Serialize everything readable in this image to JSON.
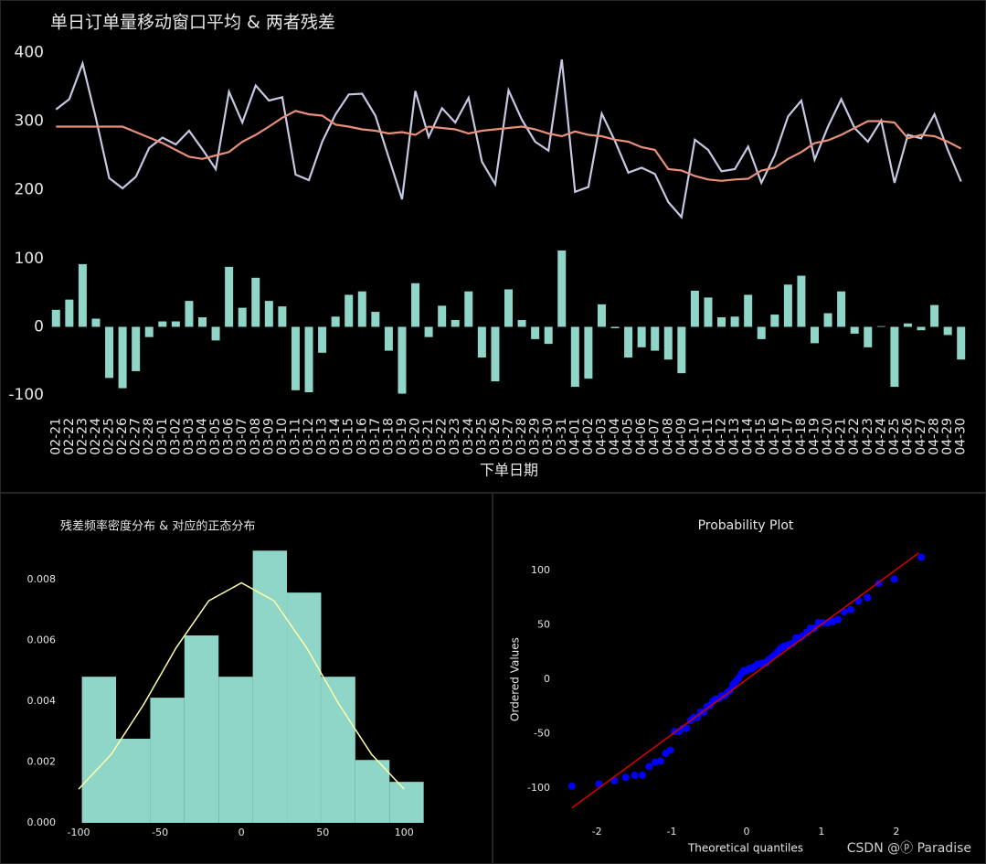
{
  "chart_data": [
    {
      "type": "line",
      "title": "单日订单量移动窗口平均 & 两者残差",
      "series": [
        {
          "color": "#c5c8e0",
          "values": [
            317,
            332,
            384,
            304,
            217,
            202,
            219,
            261,
            276,
            266,
            286,
            259,
            230,
            343,
            298,
            352,
            330,
            335,
            222,
            214,
            270,
            310,
            339,
            340,
            308,
            247,
            186,
            344,
            277,
            319,
            298,
            334,
            241,
            208,
            345,
            302,
            270,
            257,
            390,
            197,
            204,
            311,
            271,
            225,
            232,
            223,
            182,
            160,
            273,
            258,
            227,
            230,
            263,
            210,
            250,
            307,
            330,
            244,
            292,
            332,
            290,
            270,
            301,
            210,
            280,
            275,
            310,
            258,
            212
          ]
        },
        {
          "color": "#e8907a",
          "values": [
            292,
            292,
            292,
            292,
            292,
            292,
            284,
            276,
            268,
            258,
            248,
            245,
            250,
            255,
            270,
            280,
            292,
            305,
            315,
            310,
            308,
            295,
            292,
            288,
            286,
            282,
            284,
            280,
            292,
            290,
            288,
            282,
            286,
            288,
            290,
            292,
            288,
            282,
            278,
            285,
            280,
            278,
            273,
            270,
            262,
            258,
            230,
            228,
            220,
            215,
            213,
            215,
            216,
            228,
            232,
            245,
            255,
            268,
            272,
            280,
            290,
            300,
            300,
            298,
            275,
            280,
            278,
            270,
            260
          ]
        }
      ],
      "ylim": [
        140,
        410
      ],
      "yticks": [
        200,
        300,
        400
      ]
    },
    {
      "type": "bar",
      "xlabel": "下单日期",
      "color": "#8fd5c8",
      "categories": [
        "02-21",
        "02-22",
        "02-23",
        "02-24",
        "02-25",
        "02-26",
        "02-27",
        "02-28",
        "03-01",
        "03-02",
        "03-03",
        "03-04",
        "03-05",
        "03-06",
        "03-07",
        "03-08",
        "03-09",
        "03-10",
        "03-11",
        "03-12",
        "03-13",
        "03-14",
        "03-15",
        "03-16",
        "03-17",
        "03-18",
        "03-19",
        "03-20",
        "03-21",
        "03-22",
        "03-23",
        "03-24",
        "03-25",
        "03-26",
        "03-27",
        "03-28",
        "03-29",
        "03-30",
        "03-31",
        "04-01",
        "04-02",
        "04-03",
        "04-04",
        "04-05",
        "04-06",
        "04-07",
        "04-08",
        "04-09",
        "04-10",
        "04-11",
        "04-12",
        "04-13",
        "04-14",
        "04-15",
        "04-16",
        "04-17",
        "04-18",
        "04-19",
        "04-20",
        "04-21",
        "04-22",
        "04-23",
        "04-24",
        "04-25",
        "04-26",
        "04-27",
        "04-28",
        "04-29",
        "04-30"
      ],
      "values": [
        25,
        40,
        92,
        12,
        -75,
        -90,
        -65,
        -15,
        8,
        8,
        38,
        14,
        -20,
        88,
        28,
        72,
        38,
        30,
        -93,
        -96,
        -38,
        15,
        47,
        52,
        22,
        -35,
        -98,
        64,
        -15,
        31,
        10,
        52,
        -45,
        -80,
        55,
        10,
        -18,
        -25,
        112,
        -88,
        -76,
        33,
        -2,
        -45,
        -30,
        -35,
        -48,
        -68,
        53,
        43,
        14,
        15,
        47,
        -18,
        18,
        62,
        75,
        -24,
        20,
        52,
        -10,
        -30,
        1,
        -88,
        5,
        -5,
        32,
        -12,
        -48
      ],
      "ylim": [
        -110,
        120
      ],
      "yticks": [
        -100,
        0,
        100
      ]
    },
    {
      "type": "histogram",
      "title": "残差频率密度分布 & 对应的正态分布",
      "color": "#8fd5c8",
      "bins": [
        -98,
        -77,
        -56,
        -35,
        -14,
        7,
        28,
        49,
        70,
        91,
        112
      ],
      "values": [
        0.00481,
        0.00277,
        0.00412,
        0.00617,
        0.00481,
        0.00896,
        0.00758,
        0.00481,
        0.00207,
        0.00135
      ],
      "line": {
        "color": "#ffffa8",
        "x": [
          -100,
          -80,
          -60,
          -40,
          -20,
          0,
          20,
          40,
          60,
          80,
          100
        ],
        "values": [
          0.00111,
          0.00225,
          0.0039,
          0.00577,
          0.00731,
          0.0079,
          0.00731,
          0.00577,
          0.0039,
          0.00225,
          0.00111
        ]
      },
      "xlim": [
        -109,
        115
      ],
      "xticks": [
        -100,
        -50,
        0,
        50,
        100
      ],
      "ylim": [
        0,
        0.0093
      ],
      "yticks": [
        {
          "value": 0,
          "label": "0.000"
        },
        {
          "value": 0.002,
          "label": "0.002"
        },
        {
          "value": 0.004,
          "label": "0.004"
        },
        {
          "value": 0.006,
          "label": "0.006"
        },
        {
          "value": 0.008,
          "label": "0.008"
        }
      ]
    },
    {
      "type": "scatter",
      "title": "Probability Plot",
      "xlabel": "Theoretical quantiles",
      "ylabel": "Ordered Values",
      "color": "#0000ff",
      "x": [
        -2.334,
        -1.973,
        -1.766,
        -1.615,
        -1.495,
        -1.392,
        -1.302,
        -1.222,
        -1.149,
        -1.082,
        -1.019,
        -0.961,
        -0.905,
        -0.852,
        -0.801,
        -0.752,
        -0.705,
        -0.659,
        -0.615,
        -0.572,
        -0.53,
        -0.488,
        -0.448,
        -0.409,
        -0.37,
        -0.331,
        -0.293,
        -0.256,
        -0.219,
        -0.182,
        -0.145,
        -0.109,
        -0.072,
        -0.036,
        0,
        0.036,
        0.072,
        0.109,
        0.145,
        0.182,
        0.219,
        0.256,
        0.293,
        0.331,
        0.37,
        0.409,
        0.448,
        0.488,
        0.53,
        0.572,
        0.615,
        0.659,
        0.705,
        0.752,
        0.801,
        0.852,
        0.905,
        0.961,
        1.019,
        1.082,
        1.149,
        1.222,
        1.302,
        1.392,
        1.495,
        1.615,
        1.766,
        1.973,
        2.334
      ],
      "values": [
        -98,
        -96,
        -93,
        -90,
        -88,
        -88,
        -80,
        -76,
        -75,
        -68,
        -65,
        -48,
        -48,
        -45,
        -45,
        -38,
        -35,
        -35,
        -30,
        -30,
        -25,
        -24,
        -20,
        -18,
        -18,
        -15,
        -15,
        -12,
        -10,
        -5,
        -2,
        1,
        5,
        8,
        8,
        10,
        10,
        12,
        14,
        14,
        15,
        15,
        18,
        20,
        22,
        25,
        28,
        30,
        31,
        32,
        33,
        38,
        38,
        40,
        43,
        47,
        47,
        52,
        52,
        52,
        53,
        55,
        62,
        64,
        72,
        75,
        88,
        92,
        112
      ],
      "line": {
        "color": "#cc0000",
        "x": [
          -2.334,
          2.3
        ],
        "values": [
          -118,
          116
        ]
      },
      "xlim": [
        -2.6,
        2.6
      ],
      "xticks": [
        -2,
        -1,
        0,
        1,
        2
      ],
      "ylim": [
        -125,
        125
      ],
      "yticks": [
        -100,
        -50,
        0,
        50,
        100
      ]
    }
  ],
  "watermark": "CSDN @ⓟ Paradise"
}
